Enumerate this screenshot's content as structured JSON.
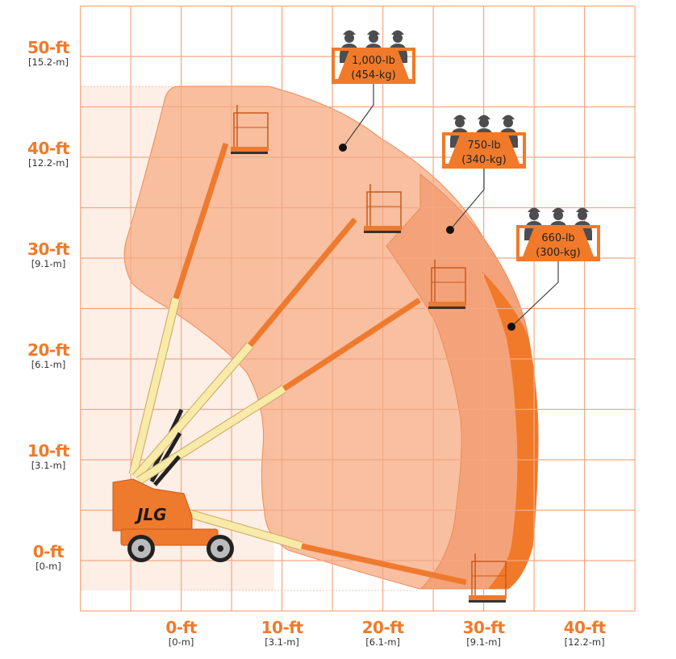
{
  "colors": {
    "grid": "#f5a882",
    "label_orange": "#f07a2a",
    "envelope_1000": "#f7b896",
    "envelope_750": "#f4a27a",
    "envelope_660": "#f07a2a",
    "pale_zone": "#fdeee6",
    "boom_yellow": "#f8eaa8",
    "boom_orange": "#ee7a2e",
    "people": "#4d4d4f"
  },
  "y_axis": [
    {
      "ft": "50-ft",
      "m": "[15.2-m]"
    },
    {
      "ft": "40-ft",
      "m": "[12.2-m]"
    },
    {
      "ft": "30-ft",
      "m": "[9.1-m]"
    },
    {
      "ft": "20-ft",
      "m": "[6.1-m]"
    },
    {
      "ft": "10-ft",
      "m": "[3.1-m]"
    },
    {
      "ft": "0-ft",
      "m": "[0-m]"
    }
  ],
  "x_axis": [
    {
      "ft": "0-ft",
      "m": "[0-m]"
    },
    {
      "ft": "10-ft",
      "m": "[3.1-m]"
    },
    {
      "ft": "20-ft",
      "m": "[6.1-m]"
    },
    {
      "ft": "30-ft",
      "m": "[9.1-m]"
    },
    {
      "ft": "40-ft",
      "m": "[12.2-m]"
    }
  ],
  "capacity_zones": [
    {
      "lb": "1,000-lb",
      "kg": "(454-kg)",
      "people": 3
    },
    {
      "lb": "750-lb",
      "kg": "(340-kg)",
      "people": 3
    },
    {
      "lb": "660-lb",
      "kg": "(300-kg)",
      "people": 3
    }
  ],
  "machine": {
    "logo": "JLG"
  }
}
